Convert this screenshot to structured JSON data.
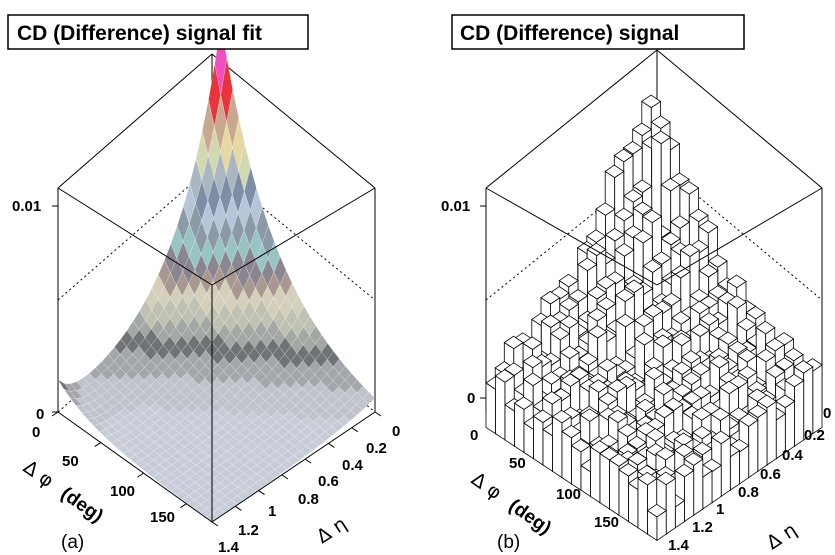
{
  "chart_data": [
    {
      "type": "surface",
      "title": "CD (Difference) signal fit",
      "panel_label": "(a)",
      "zlabel": "",
      "z_ticks": [
        "0",
        "0.01"
      ],
      "zlim": [
        0,
        0.0135
      ],
      "x_label_symbol": "Δ φ",
      "x_label_unit": "(deg)",
      "x_ticks": [
        "0",
        "50",
        "100",
        "150"
      ],
      "xlim": [
        0,
        180
      ],
      "y_label": "Δ η",
      "y_ticks": [
        "0",
        "0.2",
        "0.4",
        "0.6",
        "0.8",
        "1",
        "1.2",
        "1.4"
      ],
      "ylim": [
        0,
        1.4
      ],
      "peak_value": 0.0135,
      "peak_location": {
        "delta_phi": 0,
        "delta_eta": 0
      },
      "band_colors": [
        "#c8ccd8",
        "#c0c2cc",
        "#a3a6aa",
        "#6f7375",
        "#a3a8a4",
        "#bfc2b2",
        "#d4cfba",
        "#a89890",
        "#8a8690",
        "#98c4c4",
        "#8c9aa8",
        "#b6c6d8",
        "#7d8ea6",
        "#aab6c0",
        "#d2d8b0",
        "#e6d8a0",
        "#c8a890",
        "#9c8898",
        "#e8343c",
        "#f0207c",
        "#f250c0",
        "#2ab050",
        "#101010"
      ]
    },
    {
      "type": "lego",
      "title": "CD (Difference) signal",
      "panel_label": "(b)",
      "zlabel": "",
      "z_ticks": [
        "0",
        "0.01"
      ],
      "zlim": [
        0,
        0.0135
      ],
      "x_label_symbol": "Δ φ",
      "x_label_unit": "(deg)",
      "x_ticks": [
        "0",
        "50",
        "100",
        "150"
      ],
      "xlim": [
        0,
        180
      ],
      "y_label": "Δ η",
      "y_ticks": [
        "0",
        "0.2",
        "0.4",
        "0.6",
        "0.8",
        "1",
        "1.2",
        "1.4"
      ],
      "ylim": [
        0,
        1.4
      ]
    }
  ]
}
